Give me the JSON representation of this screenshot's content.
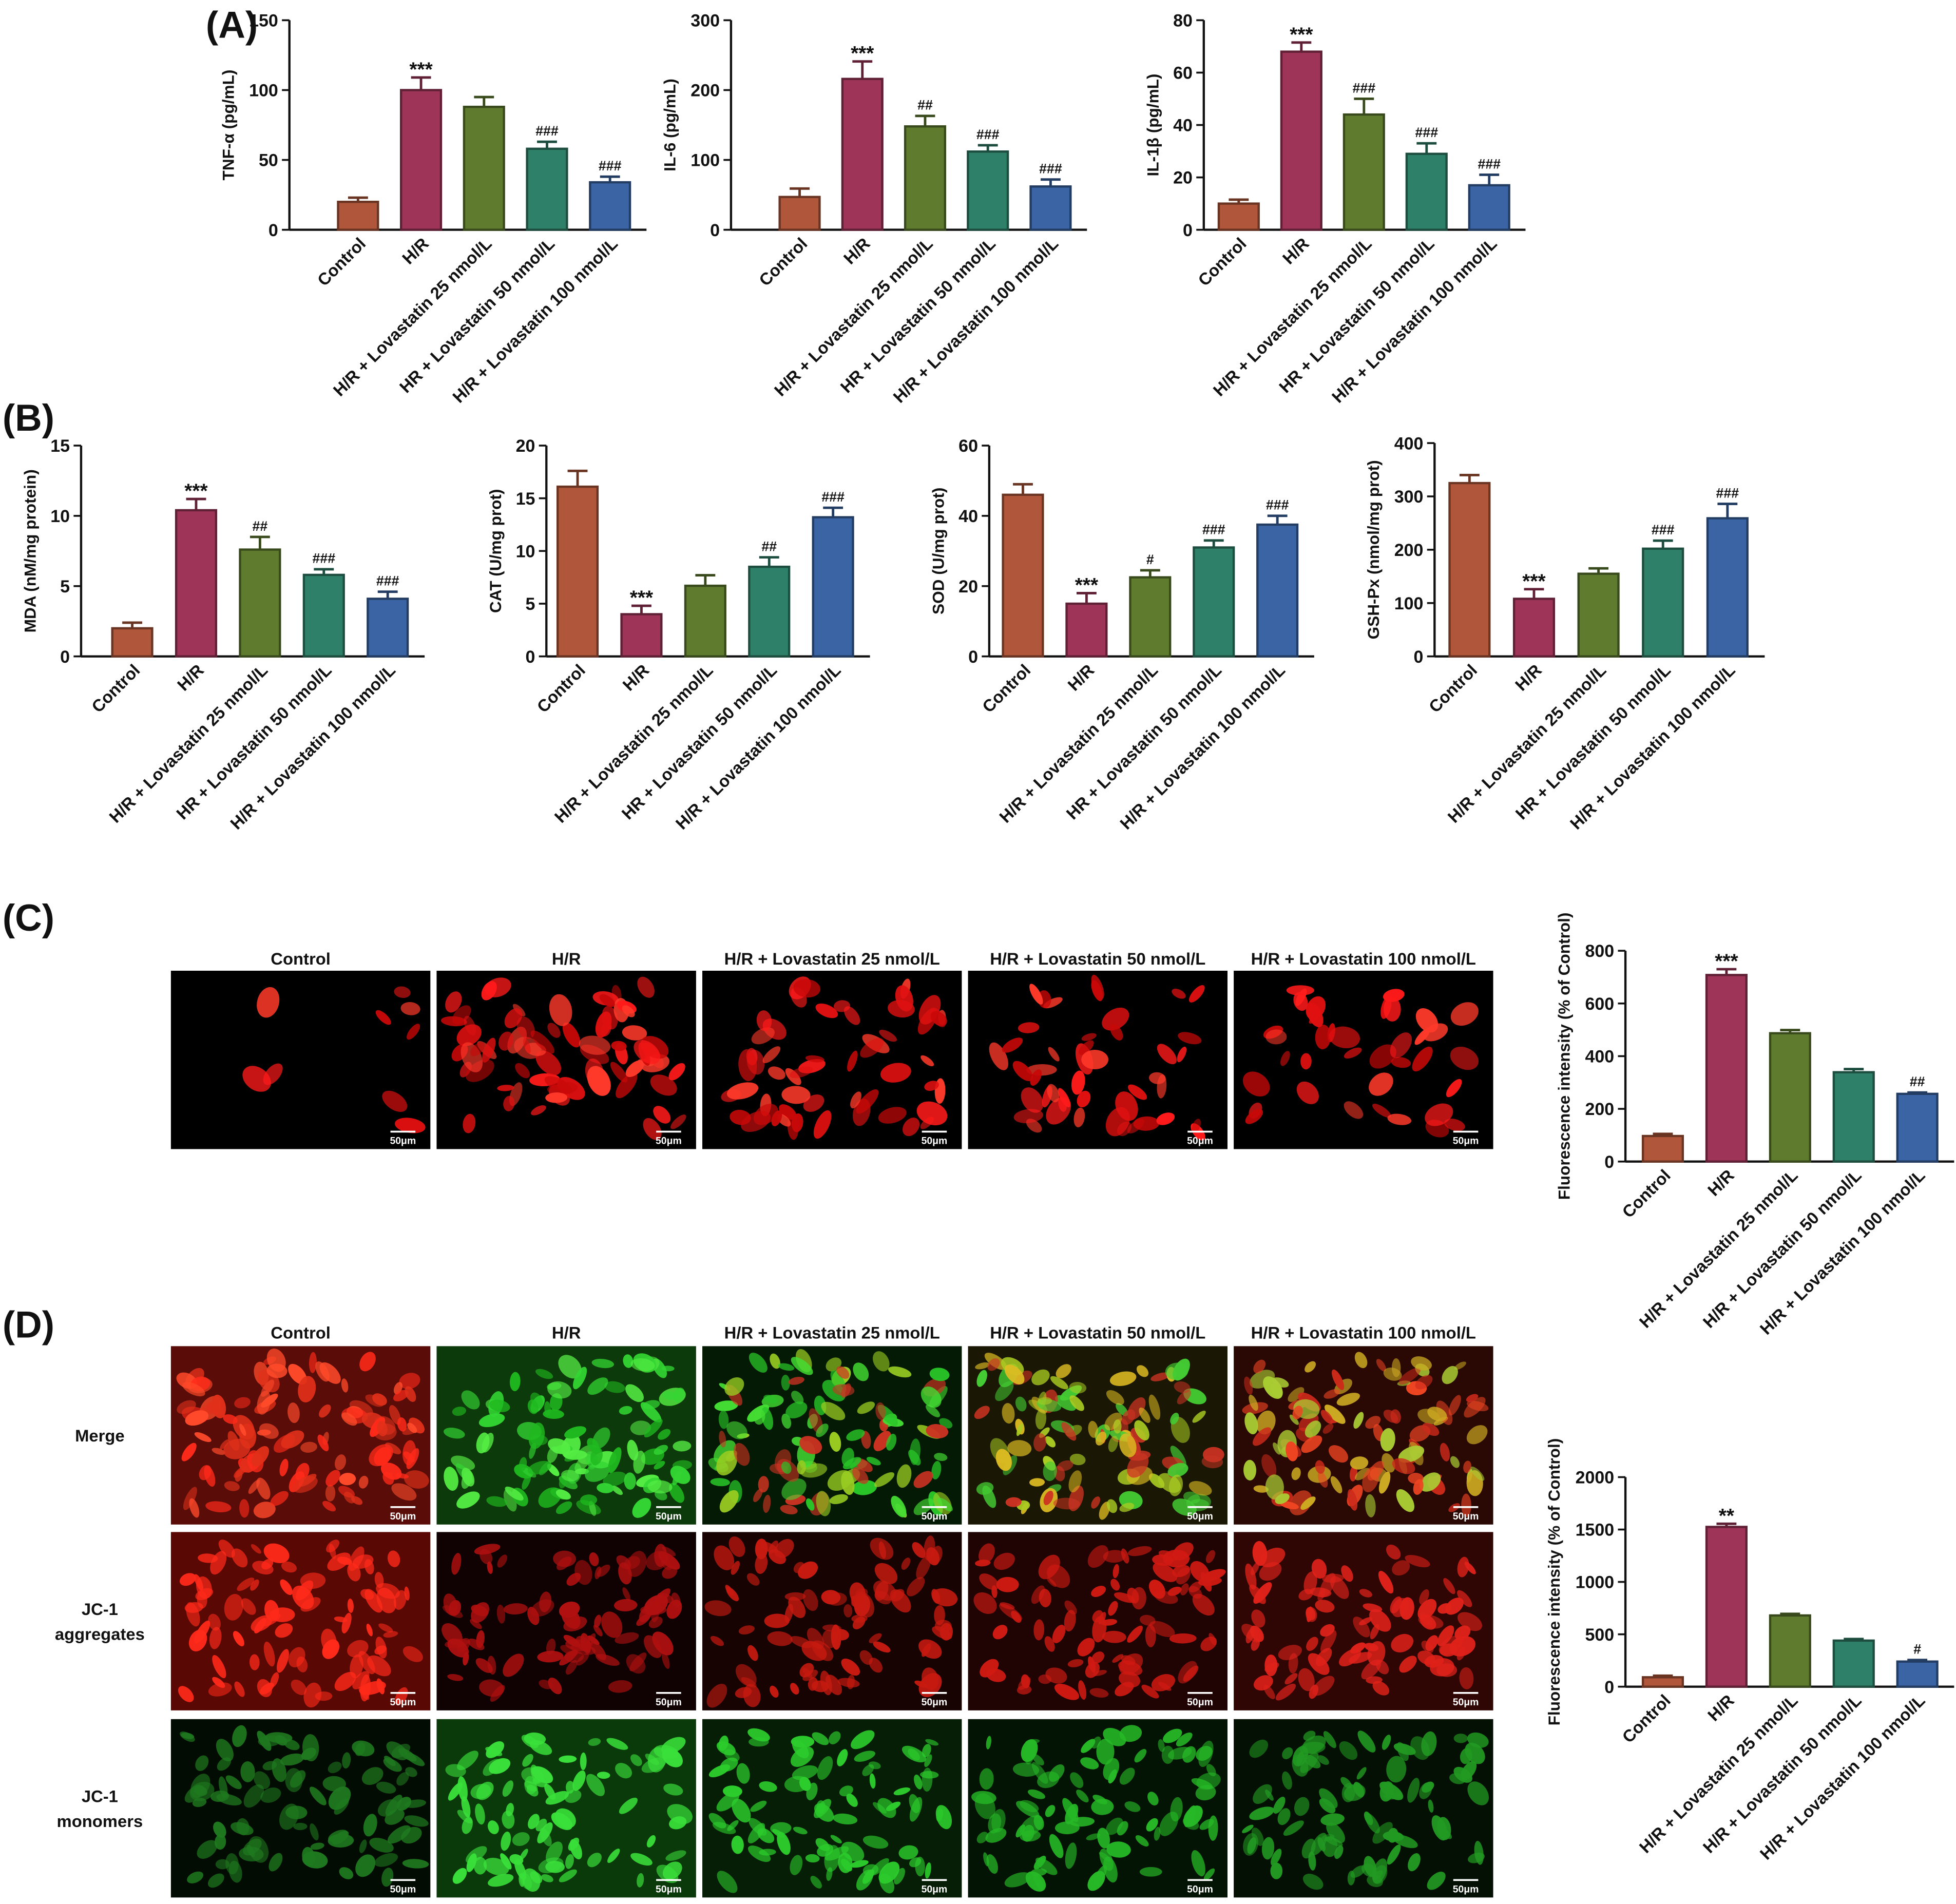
{
  "panels": [
    "(A)",
    "(B)",
    "(C)",
    "(D)"
  ],
  "micrographs": {
    "columns": [
      "Control",
      "H/R",
      "H/R + Lovastatin 25 nmol/L",
      "H/R + Lovastatin 50 nmol/L",
      "H/R + Lovastatin 100 nmol/L"
    ],
    "rows": [
      [
        "Merge"
      ],
      [
        "JC-1",
        "aggregates"
      ],
      [
        "JC-1",
        "monomers"
      ]
    ],
    "scale_bar": "50μm"
  },
  "chart_data": [
    {
      "type": "bar",
      "ylabel": "TNF-α (pg/mL)",
      "categories": [
        "Control",
        "H/R",
        "H/R + Lovastatin 25 nmol/L",
        "HR + Lovastatin 50 nmol/L",
        "H/R + Lovastatin 100 nmol/L"
      ],
      "values": [
        20,
        100,
        88,
        58,
        34
      ],
      "errors": [
        3,
        9,
        7,
        5,
        4
      ],
      "annotations": [
        null,
        "***",
        null,
        "###",
        "###"
      ],
      "colors": [
        "#b0563a",
        "#9e3558",
        "#5e7b2e",
        "#2e8068",
        "#3b64a4"
      ],
      "ylim": [
        0,
        150
      ],
      "yticks": [
        0,
        50,
        100,
        150
      ]
    },
    {
      "type": "bar",
      "ylabel": "IL-6 (pg/mL)",
      "categories": [
        "Control",
        "H/R",
        "H/R + Lovastatin 25 nmol/L",
        "HR + Lovastatin 50 nmol/L",
        "H/R + Lovastatin 100 nmol/L"
      ],
      "values": [
        47,
        216,
        148,
        112,
        62
      ],
      "errors": [
        12,
        25,
        15,
        9,
        10
      ],
      "annotations": [
        null,
        "***",
        "##",
        "###",
        "###"
      ],
      "colors": [
        "#b0563a",
        "#9e3558",
        "#5e7b2e",
        "#2e8068",
        "#3b64a4"
      ],
      "ylim": [
        0,
        300
      ],
      "yticks": [
        0,
        100,
        200,
        300
      ]
    },
    {
      "type": "bar",
      "ylabel": "IL-1β (pg/mL)",
      "categories": [
        "Control",
        "H/R",
        "H/R + Lovastatin 25 nmol/L",
        "HR + Lovastatin 50 nmol/L",
        "H/R + Lovastatin 100 nmol/L"
      ],
      "values": [
        10,
        68,
        44,
        29,
        17
      ],
      "errors": [
        1.5,
        3.5,
        6,
        4,
        4
      ],
      "annotations": [
        null,
        "***",
        "###",
        "###",
        "###"
      ],
      "colors": [
        "#b0563a",
        "#9e3558",
        "#5e7b2e",
        "#2e8068",
        "#3b64a4"
      ],
      "ylim": [
        0,
        80
      ],
      "yticks": [
        0,
        20,
        40,
        60,
        80
      ]
    },
    {
      "type": "bar",
      "ylabel": "MDA (nM/mg protein)",
      "categories": [
        "Control",
        "H/R",
        "H/R + Lovastatin 25 nmol/L",
        "HR + Lovastatin 50 nmol/L",
        "H/R + Lovastatin 100 nmol/L"
      ],
      "values": [
        2.0,
        10.4,
        7.6,
        5.8,
        4.1
      ],
      "errors": [
        0.4,
        0.8,
        0.9,
        0.4,
        0.5
      ],
      "annotations": [
        null,
        "***",
        "##",
        "###",
        "###"
      ],
      "colors": [
        "#b0563a",
        "#9e3558",
        "#5e7b2e",
        "#2e8068",
        "#3b64a4"
      ],
      "ylim": [
        0,
        15
      ],
      "yticks": [
        0,
        5,
        10,
        15
      ]
    },
    {
      "type": "bar",
      "ylabel": "CAT (U/mg prot)",
      "categories": [
        "Control",
        "H/R",
        "H/R + Lovastatin 25 nmol/L",
        "HR + Lovastatin 50 nmol/L",
        "H/R + Lovastatin 100 nmol/L"
      ],
      "values": [
        16.1,
        4.0,
        6.7,
        8.5,
        13.2
      ],
      "errors": [
        1.5,
        0.8,
        1.0,
        0.9,
        0.9
      ],
      "annotations": [
        null,
        "***",
        null,
        "##",
        "###"
      ],
      "colors": [
        "#b0563a",
        "#9e3558",
        "#5e7b2e",
        "#2e8068",
        "#3b64a4"
      ],
      "ylim": [
        0,
        20
      ],
      "yticks": [
        0,
        5,
        10,
        15,
        20
      ]
    },
    {
      "type": "bar",
      "ylabel": "SOD (U/mg prot)",
      "categories": [
        "Control",
        "H/R",
        "H/R + Lovastatin 25 nmol/L",
        "HR + Lovastatin 50 nmol/L",
        "H/R + Lovastatin 100 nmol/L"
      ],
      "values": [
        46,
        15,
        22.5,
        31,
        37.5
      ],
      "errors": [
        3,
        3,
        2,
        2,
        2.5
      ],
      "annotations": [
        null,
        "***",
        "#",
        "###",
        "###"
      ],
      "colors": [
        "#b0563a",
        "#9e3558",
        "#5e7b2e",
        "#2e8068",
        "#3b64a4"
      ],
      "ylim": [
        0,
        60
      ],
      "yticks": [
        0,
        20,
        40,
        60
      ]
    },
    {
      "type": "bar",
      "ylabel": "GSH-Px (nmol/mg prot)",
      "categories": [
        "Control",
        "H/R",
        "H/R + Lovastatin 25 nmol/L",
        "HR + Lovastatin 50 nmol/L",
        "H/R + Lovastatin 100 nmol/L"
      ],
      "values": [
        325,
        108,
        155,
        202,
        259
      ],
      "errors": [
        15,
        18,
        10,
        15,
        27
      ],
      "annotations": [
        null,
        "***",
        null,
        "###",
        "###"
      ],
      "colors": [
        "#b0563a",
        "#9e3558",
        "#5e7b2e",
        "#2e8068",
        "#3b64a4"
      ],
      "ylim": [
        0,
        400
      ],
      "yticks": [
        0,
        100,
        200,
        300,
        400
      ]
    },
    {
      "type": "bar",
      "ylabel": "Fluorescence intensity (% of Control)",
      "categories": [
        "Control",
        "H/R",
        "H/R + Lovastatin 25 nmol/L",
        "H/R + Lovastatin 50 nmol/L",
        "H/R + Lovastatin 100 nmol/L"
      ],
      "values": [
        97,
        708,
        487,
        339,
        257
      ],
      "errors": [
        8,
        22,
        12,
        12,
        5
      ],
      "annotations": [
        null,
        "***",
        null,
        null,
        "##"
      ],
      "colors": [
        "#b0563a",
        "#9e3558",
        "#5e7b2e",
        "#2e8068",
        "#3b64a4"
      ],
      "ylim": [
        0,
        800
      ],
      "yticks": [
        0,
        200,
        400,
        600,
        800
      ]
    },
    {
      "type": "bar",
      "ylabel": "Fluorescence intensity (% of Control)",
      "categories": [
        "Control",
        "H/R",
        "H/R + Lovastatin 25 nmol/L",
        "H/R + Lovastatin 50 nmol/L",
        "H/R + Lovastatin 100 nmol/L"
      ],
      "values": [
        90,
        1525,
        680,
        440,
        240
      ],
      "errors": [
        15,
        30,
        15,
        15,
        15
      ],
      "annotations": [
        null,
        "**",
        null,
        null,
        "#"
      ],
      "colors": [
        "#b0563a",
        "#9e3558",
        "#5e7b2e",
        "#2e8068",
        "#3b64a4"
      ],
      "ylim": [
        0,
        2000
      ],
      "yticks": [
        0,
        500,
        1000,
        1500,
        2000
      ]
    }
  ]
}
